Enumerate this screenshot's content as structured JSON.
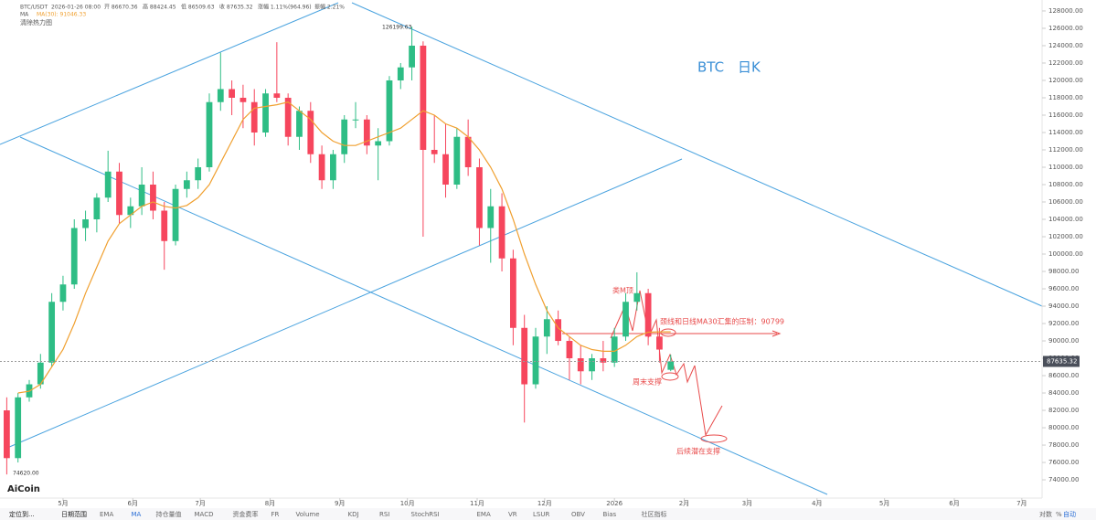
{
  "ui": {
    "header": [
      "BTC/USDT",
      "2026-01-26 08:00",
      "开 86670.36",
      "高 88424.45",
      "低 86509.63",
      "收 87635.32",
      "涨幅 1.11%(964.96)",
      "振幅 2.21%"
    ],
    "ma_header": [
      "MA",
      "MA(30): 91046.33"
    ],
    "heatmap": "清除热力图",
    "logo": "AiCoin",
    "toolbar": [
      "定位到...",
      "日期范围",
      "EMA",
      "MA",
      "持仓量值",
      "MACD",
      "资金费率",
      "FR",
      "Volume",
      "KDJ",
      "RSI",
      "StochRSI",
      "EMA",
      "VR",
      "LSUR",
      "OBV",
      "Bias",
      "社区指标"
    ],
    "toolbar_right": [
      "对数",
      "%",
      "自动"
    ]
  },
  "chart_data": {
    "type": "candlestick",
    "title": "BTC　日K",
    "x": [
      5,
      10,
      15,
      20,
      25,
      30,
      35,
      40,
      45,
      50,
      55,
      60,
      65,
      70,
      75,
      80,
      85,
      90,
      95,
      100,
      105,
      110,
      115,
      120,
      125,
      130,
      135,
      140,
      145,
      150,
      155,
      160,
      165,
      170,
      175,
      180,
      185,
      190,
      195,
      200,
      205,
      210,
      215,
      220,
      225,
      230,
      235,
      240,
      245,
      250,
      255,
      260,
      265,
      270,
      275,
      280,
      285,
      290,
      295,
      300
    ],
    "open": [
      82000,
      76500,
      83500,
      85000,
      87500,
      94500,
      96500,
      103000,
      104000,
      106500,
      109500,
      104500,
      105500,
      108000,
      105000,
      101500,
      107500,
      108500,
      110000,
      117500,
      119000,
      118000,
      117500,
      114000,
      118500,
      118000,
      113500,
      116500,
      111500,
      108500,
      111500,
      115500,
      115500,
      112500,
      113000,
      120000,
      121500,
      124000,
      112000,
      111500,
      108000,
      113500,
      110000,
      103000,
      105500,
      99500,
      91500,
      85000,
      90500,
      92500,
      90000,
      88000,
      86500,
      88000,
      87500,
      90500,
      94500,
      95500,
      90500,
      86670.36
    ],
    "high": [
      83500,
      84000,
      85500,
      88500,
      95500,
      97500,
      104000,
      105000,
      107000,
      111900,
      110500,
      106500,
      110000,
      109500,
      106000,
      108000,
      109500,
      111000,
      118500,
      123200,
      120000,
      119500,
      119000,
      119000,
      124400,
      118500,
      117000,
      117500,
      112500,
      112000,
      116000,
      117500,
      116000,
      114500,
      120500,
      122000,
      126199.63,
      124500,
      116000,
      115000,
      114500,
      115500,
      111000,
      107500,
      107000,
      100500,
      93000,
      91500,
      94000,
      93500,
      90500,
      89500,
      88500,
      90000,
      91500,
      95500,
      97900,
      96000,
      91500,
      88424.45
    ],
    "low": [
      74620,
      76000,
      83000,
      84500,
      87000,
      93500,
      96000,
      101500,
      102500,
      106000,
      103500,
      103000,
      104500,
      104000,
      98200,
      101000,
      106500,
      107500,
      109500,
      116500,
      116000,
      114500,
      112500,
      113500,
      117500,
      112500,
      112000,
      110500,
      107500,
      107500,
      110500,
      114500,
      111500,
      108500,
      112500,
      119000,
      120000,
      102000,
      110500,
      106500,
      107500,
      109000,
      101000,
      99000,
      98000,
      89500,
      80600,
      84500,
      88500,
      89500,
      85500,
      85000,
      85500,
      86500,
      87000,
      90000,
      93500,
      89500,
      87500,
      86509.63
    ],
    "close": [
      76500,
      83500,
      85000,
      87500,
      94500,
      96500,
      103000,
      104000,
      106500,
      109500,
      104500,
      105500,
      108000,
      105000,
      101500,
      107500,
      108500,
      110000,
      117500,
      119000,
      118000,
      117500,
      114000,
      118500,
      118000,
      113500,
      116500,
      111500,
      108500,
      111500,
      115500,
      115500,
      112500,
      113000,
      120000,
      121500,
      124000,
      112000,
      111500,
      108000,
      113500,
      110000,
      103000,
      105500,
      99500,
      91500,
      85000,
      90500,
      92500,
      90000,
      88000,
      86500,
      88000,
      87500,
      90500,
      94500,
      95500,
      90500,
      89000,
      87635.32
    ],
    "up_color": "#2ebd85",
    "down_color": "#f6465d",
    "ma": {
      "name": "MA(30)",
      "color": "#f0a030",
      "values": [
        null,
        84000,
        84200,
        85000,
        87000,
        89000,
        92000,
        95500,
        98500,
        101500,
        103500,
        104500,
        105500,
        106000,
        105500,
        105300,
        105600,
        106500,
        108000,
        110500,
        113000,
        115500,
        116800,
        117000,
        117200,
        117500,
        116500,
        115500,
        114000,
        113000,
        112500,
        112500,
        113000,
        113500,
        114000,
        114500,
        115500,
        116500,
        116000,
        115000,
        114500,
        113500,
        112000,
        110000,
        107500,
        104000,
        100000,
        96500,
        93500,
        91500,
        90500,
        89500,
        89000,
        88800,
        88800,
        89500,
        90500,
        91000,
        91046.33,
        91046.33
      ]
    },
    "xlim": [
      2,
      465
    ],
    "ylim": [
      71900,
      129260
    ],
    "xticks": [
      {
        "value": 30,
        "label": "5月"
      },
      {
        "value": 61,
        "label": "6月"
      },
      {
        "value": 91,
        "label": "7月"
      },
      {
        "value": 122,
        "label": "8月"
      },
      {
        "value": 153,
        "label": "9月"
      },
      {
        "value": 183,
        "label": "10月"
      },
      {
        "value": 214,
        "label": "11月"
      },
      {
        "value": 244,
        "label": "12月"
      },
      {
        "value": 275,
        "label": "2026"
      },
      {
        "value": 306,
        "label": "2月"
      },
      {
        "value": 334,
        "label": "3月"
      },
      {
        "value": 365,
        "label": "4月"
      },
      {
        "value": 395,
        "label": "5月"
      },
      {
        "value": 426,
        "label": "6月"
      },
      {
        "value": 456,
        "label": "7月"
      }
    ],
    "yticks": [
      {
        "value": 74000,
        "label": "74000.00"
      },
      {
        "value": 76000,
        "label": "76000.00"
      },
      {
        "value": 78000,
        "label": "78000.00"
      },
      {
        "value": 80000,
        "label": "80000.00"
      },
      {
        "value": 82000,
        "label": "82000.00"
      },
      {
        "value": 84000,
        "label": "84000.00"
      },
      {
        "value": 86000,
        "label": "86000.00"
      },
      {
        "value": 88000,
        "label": "88000.00"
      },
      {
        "value": 90000,
        "label": "90000.00"
      },
      {
        "value": 92000,
        "label": "92000.00"
      },
      {
        "value": 94000,
        "label": "94000.00"
      },
      {
        "value": 96000,
        "label": "96000.00"
      },
      {
        "value": 98000,
        "label": "98000.00"
      },
      {
        "value": 100000,
        "label": "100000.00"
      },
      {
        "value": 102000,
        "label": "102000.00"
      },
      {
        "value": 104000,
        "label": "104000.00"
      },
      {
        "value": 106000,
        "label": "106000.00"
      },
      {
        "value": 108000,
        "label": "108000.00"
      },
      {
        "value": 110000,
        "label": "110000.00"
      },
      {
        "value": 112000,
        "label": "112000.00"
      },
      {
        "value": 114000,
        "label": "114000.00"
      },
      {
        "value": 116000,
        "label": "116000.00"
      },
      {
        "value": 118000,
        "label": "118000.00"
      },
      {
        "value": 120000,
        "label": "120000.00"
      },
      {
        "value": 122000,
        "label": "122000.00"
      },
      {
        "value": 124000,
        "label": "124000.00"
      },
      {
        "value": 126000,
        "label": "126000.00"
      },
      {
        "value": 128000,
        "label": "128000.00"
      }
    ],
    "grid": false,
    "annotations": [
      {
        "text": "126199.63"
      },
      {
        "text": "74620.00"
      },
      {
        "text": "类M顶"
      },
      {
        "text": "颈线和日线MA30汇集的压制：90799"
      },
      {
        "text": "周末支撑"
      },
      {
        "text": "后续潜在支撑"
      }
    ]
  }
}
